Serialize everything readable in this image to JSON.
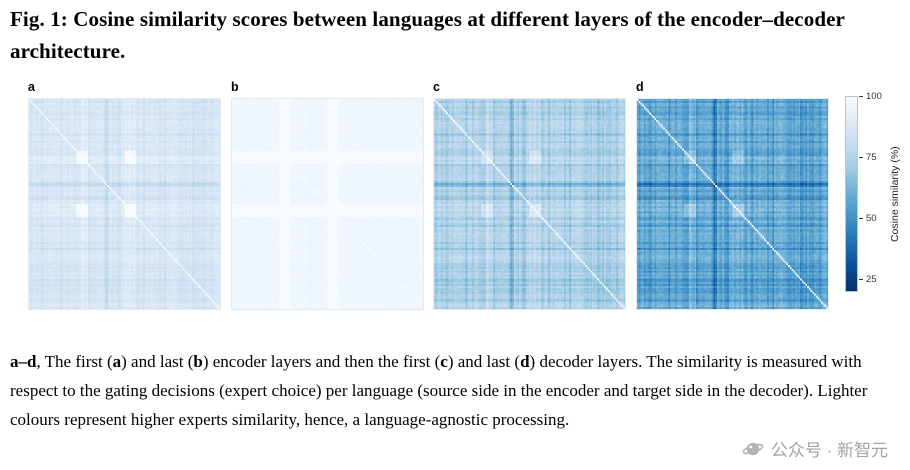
{
  "figure": {
    "title": "Fig. 1: Cosine similarity scores between languages at different layers of the encoder–decoder architecture.",
    "panels": [
      {
        "label": "a"
      },
      {
        "label": "b"
      },
      {
        "label": "c"
      },
      {
        "label": "d"
      }
    ],
    "colorbar": {
      "label": "Cosine similarity (%)",
      "ticks": [
        100,
        75,
        50,
        25
      ],
      "max": 100,
      "min": 20
    },
    "colormap": [
      "#f7fbff",
      "#deebf7",
      "#c6dbef",
      "#9ecae1",
      "#6baed6",
      "#4292c6",
      "#2171b5",
      "#08519c",
      "#08306b"
    ],
    "caption_segments": [
      {
        "text": "a–d",
        "bold": true
      },
      {
        "text": ", The first (",
        "bold": false
      },
      {
        "text": "a",
        "bold": true
      },
      {
        "text": ") and last (",
        "bold": false
      },
      {
        "text": "b",
        "bold": true
      },
      {
        "text": ") encoder layers and then the first (",
        "bold": false
      },
      {
        "text": "c",
        "bold": true
      },
      {
        "text": ") and last (",
        "bold": false
      },
      {
        "text": "d",
        "bold": true
      },
      {
        "text": ") decoder layers. The similarity is measured with respect to the gating decisions (expert choice) per language (source side in the encoder and target side in the decoder). Lighter colours represent higher experts similarity, hence, a language-agnostic processing.",
        "bold": false
      }
    ],
    "watermark": {
      "text": "公众号 · 新智元"
    }
  },
  "heatmap_render": {
    "n": 110,
    "band_seed": 42,
    "strong_bands": [
      {
        "index": 7,
        "value": 0.5
      },
      {
        "index": 18,
        "value": 0.7
      },
      {
        "index": 44,
        "value": 1.15
      },
      {
        "index": 45,
        "value": 0.85
      },
      {
        "index": 52,
        "value": 0.6
      },
      {
        "index": 66,
        "value": 0.55
      },
      {
        "index": 78,
        "value": 0.7
      },
      {
        "index": 88,
        "value": 0.45
      },
      {
        "index": 97,
        "value": 0.6
      }
    ],
    "light_clusters": [
      [
        27,
        33
      ],
      [
        55,
        61
      ]
    ]
  },
  "chart_data": [
    {
      "type": "heatmap",
      "panel": "a",
      "description": "First encoder layer: language-by-language cosine similarity of gating decisions; mostly very light blue with faint darker cross bands; white diagonal (self-similarity 100%).",
      "axes": "languages × languages",
      "value_range_pct": [
        25,
        100
      ],
      "approx_mean_similarity_pct": 90,
      "diagonal_value_pct": 100,
      "render": {
        "base": 0.93,
        "amp": 0.09,
        "noise": 0.04,
        "seed": 11
      }
    },
    {
      "type": "heatmap",
      "panel": "b",
      "description": "Last encoder layer: nearly uniform near-white matrix, indicating very high similarity (language-agnostic processing).",
      "axes": "languages × languages",
      "value_range_pct": [
        25,
        100
      ],
      "approx_mean_similarity_pct": 98,
      "diagonal_value_pct": 100,
      "render": {
        "base": 0.978,
        "amp": 0.012,
        "noise": 0.01,
        "seed": 12
      }
    },
    {
      "type": "heatmap",
      "panel": "c",
      "description": "First decoder layer: medium light-blue matrix with visible darker horizontal/vertical bands and lighter diagonal.",
      "axes": "languages × languages",
      "value_range_pct": [
        25,
        100
      ],
      "approx_mean_similarity_pct": 82,
      "diagonal_value_pct": 100,
      "render": {
        "base": 0.84,
        "amp": 0.16,
        "noise": 0.05,
        "seed": 13
      }
    },
    {
      "type": "heatmap",
      "panel": "d",
      "description": "Last decoder layer: darkest blue matrix with strong dark bands (lower similarity, more language-specific processing); light diagonal remains.",
      "axes": "languages × languages",
      "value_range_pct": [
        25,
        100
      ],
      "approx_mean_similarity_pct": 70,
      "diagonal_value_pct": 100,
      "render": {
        "base": 0.7,
        "amp": 0.2,
        "noise": 0.06,
        "seed": 14
      }
    }
  ]
}
